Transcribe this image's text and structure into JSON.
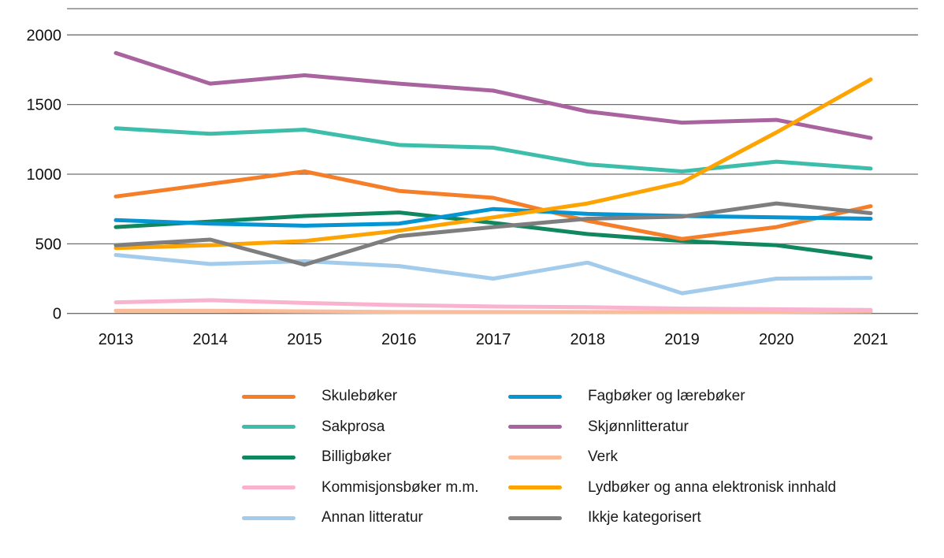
{
  "chart_data": {
    "type": "line",
    "title": "",
    "xlabel": "",
    "ylabel": "",
    "x": [
      2013,
      2014,
      2015,
      2016,
      2017,
      2018,
      2019,
      2020,
      2021
    ],
    "yticks": [
      0,
      500,
      1000,
      1500,
      2000
    ],
    "ylim": [
      0,
      2200
    ],
    "grid": true,
    "legend_position": "bottom",
    "series": [
      {
        "name": "Skulebøker",
        "color": "#F57E29",
        "values": [
          840,
          930,
          1020,
          880,
          830,
          665,
          535,
          620,
          770
        ]
      },
      {
        "name": "Fagbøker og lærebøker",
        "color": "#0595D2",
        "values": [
          670,
          645,
          630,
          645,
          750,
          715,
          700,
          690,
          680
        ]
      },
      {
        "name": "Sakprosa",
        "color": "#3DBEAB",
        "values": [
          1330,
          1290,
          1320,
          1210,
          1190,
          1070,
          1020,
          1090,
          1040
        ]
      },
      {
        "name": "Skjønnlitteratur",
        "color": "#A9639F",
        "values": [
          1870,
          1650,
          1710,
          1650,
          1600,
          1450,
          1370,
          1390,
          1260
        ]
      },
      {
        "name": "Billigbøker",
        "color": "#10875F",
        "values": [
          620,
          660,
          700,
          725,
          650,
          570,
          520,
          490,
          400
        ]
      },
      {
        "name": "Verk",
        "color": "#FBBD99",
        "values": [
          20,
          20,
          15,
          10,
          10,
          10,
          10,
          10,
          15
        ]
      },
      {
        "name": "Kommisjonsbøker m.m.",
        "color": "#F9B3CF",
        "values": [
          80,
          95,
          75,
          60,
          50,
          45,
          35,
          30,
          25
        ]
      },
      {
        "name": "Lydbøker og anna elektronisk innhald",
        "color": "#FEA402",
        "values": [
          470,
          490,
          520,
          595,
          690,
          790,
          940,
          1300,
          1680
        ]
      },
      {
        "name": "Annan litteratur",
        "color": "#A3CBEC",
        "values": [
          420,
          355,
          375,
          340,
          250,
          365,
          145,
          250,
          255
        ]
      },
      {
        "name": "Ikkje kategorisert",
        "color": "#7E7E7E",
        "values": [
          490,
          530,
          350,
          555,
          620,
          680,
          695,
          790,
          720
        ]
      }
    ],
    "draw_order": [
      "Verk",
      "Kommisjonsbøker m.m.",
      "Annan litteratur",
      "Skjønnlitteratur",
      "Sakprosa",
      "Billigbøker",
      "Skulebøker",
      "Fagbøker og lærebøker",
      "Lydbøker og anna elektronisk innhald",
      "Ikkje kategorisert"
    ],
    "legend_columns": [
      [
        "Skulebøker",
        "Sakprosa",
        "Billigbøker",
        "Kommisjonsbøker m.m.",
        "Annan litteratur"
      ],
      [
        "Fagbøker og lærebøker",
        "Skjønnlitteratur",
        "Verk",
        "Lydbøker og anna elektronisk innhald",
        "Ikkje kategorisert"
      ]
    ],
    "grid_color": "#6F6F6F",
    "text_color": "#111111"
  }
}
